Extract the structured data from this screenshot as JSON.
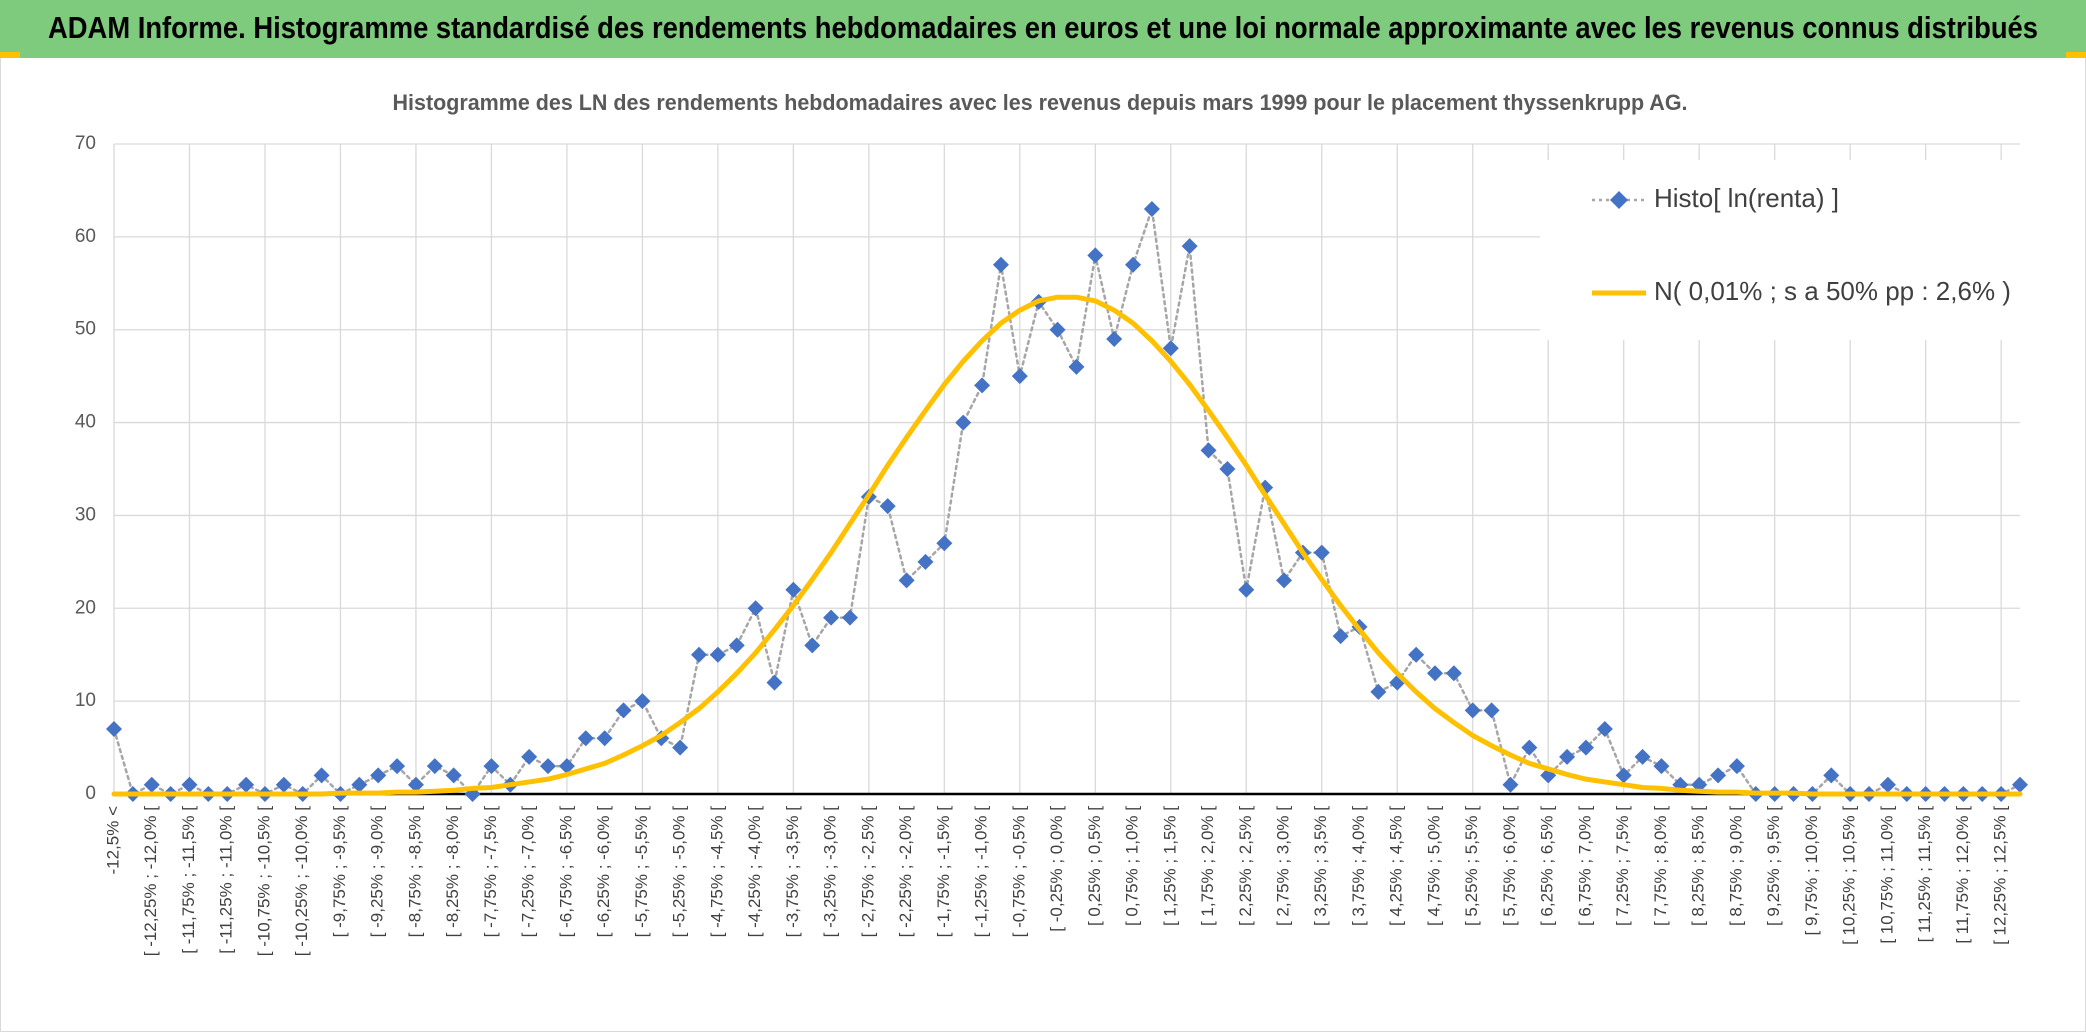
{
  "chart_data": {
    "type": "line",
    "title": "ADAM Informe. Histogramme standardisé des rendements hebdomadaires en euros et une loi normale approximante avec les revenus connus distribués",
    "subtitle": "Histogramme des LN des rendements hebdomadaires avec les revenus depuis mars 1999 pour le placement thyssenkrupp AG.",
    "categories": [
      "-12,5% <",
      null,
      "[ -12,25% ; -12,0% [",
      null,
      "[ -11,75% ; -11,5% [",
      null,
      "[ -11,25% ; -11,0% [",
      null,
      "[ -10,75% ; -10,5% [",
      null,
      "[ -10,25% ; -10,0% [",
      null,
      "[ -9,75% ; -9,5% [",
      null,
      "[ -9,25% ; -9,0% [",
      null,
      "[ -8,75% ; -8,5% [",
      null,
      "[ -8,25% ; -8,0% [",
      null,
      "[ -7,75% ; -7,5% [",
      null,
      "[ -7,25% ; -7,0% [",
      null,
      "[ -6,75% ; -6,5% [",
      null,
      "[ -6,25% ; -6,0% [",
      null,
      "[ -5,75% ; -5,5% [",
      null,
      "[ -5,25% ; -5,0% [",
      null,
      "[ -4,75% ; -4,5% [",
      null,
      "[ -4,25% ; -4,0% [",
      null,
      "[ -3,75% ; -3,5% [",
      null,
      "[ -3,25% ; -3,0% [",
      null,
      "[ -2,75% ; -2,5% [",
      null,
      "[ -2,25% ; -2,0% [",
      null,
      "[ -1,75% ; -1,5% [",
      null,
      "[ -1,25% ; -1,0% [",
      null,
      "[ -0,75% ; -0,5% [",
      null,
      "[ -0,25% ; 0,0% [",
      null,
      "[ 0,25% ; 0,5% [",
      null,
      "[ 0,75% ; 1,0% [",
      null,
      "[ 1,25% ; 1,5% [",
      null,
      "[ 1,75% ; 2,0% [",
      null,
      "[ 2,25% ; 2,5% [",
      null,
      "[ 2,75% ; 3,0% [",
      null,
      "[ 3,25% ; 3,5% [",
      null,
      "[ 3,75% ; 4,0% [",
      null,
      "[ 4,25% ; 4,5% [",
      null,
      "[ 4,75% ; 5,0% [",
      null,
      "[ 5,25% ; 5,5% [",
      null,
      "[ 5,75% ; 6,0% [",
      null,
      "[ 6,25% ; 6,5% [",
      null,
      "[ 6,75% ; 7,0% [",
      null,
      "[ 7,25% ; 7,5% [",
      null,
      "[ 7,75% ; 8,0% [",
      null,
      "[ 8,25% ; 8,5% [",
      null,
      "[ 8,75% ; 9,0% [",
      null,
      "[ 9,25% ; 9,5% [",
      null,
      "[ 9,75% ; 10,0% [",
      null,
      "[ 10,25% ; 10,5% [",
      null,
      "[ 10,75% ; 11,0% [",
      null,
      "[ 11,25% ; 11,5% [",
      null,
      "[ 11,75% ; 12,0% [",
      null,
      "[ 12,25% ; 12,5% [",
      null
    ],
    "series": [
      {
        "name": "Histo[ ln(renta) ]",
        "color": "#4472c4",
        "line_color": "#a6a6a6",
        "marker": "diamond",
        "line_style": "dotted",
        "values": [
          7,
          0,
          1,
          0,
          1,
          0,
          0,
          1,
          0,
          1,
          0,
          2,
          0,
          1,
          2,
          3,
          1,
          3,
          2,
          0,
          3,
          1,
          4,
          3,
          3,
          6,
          6,
          9,
          10,
          6,
          5,
          15,
          15,
          16,
          20,
          12,
          22,
          16,
          19,
          19,
          32,
          31,
          23,
          25,
          27,
          40,
          44,
          57,
          45,
          53,
          50,
          46,
          58,
          49,
          57,
          63,
          48,
          59,
          37,
          35,
          22,
          33,
          23,
          26,
          26,
          17,
          18,
          11,
          12,
          15,
          13,
          13,
          9,
          9,
          1,
          5,
          2,
          4,
          5,
          7,
          2,
          4,
          3,
          1,
          1,
          2,
          3,
          0,
          0,
          0,
          0,
          2,
          0,
          0,
          1,
          0,
          0,
          0,
          0,
          0,
          0,
          1
        ]
      },
      {
        "name": "N( 0,01% ; s a 50% pp : 2,6% )",
        "color": "#ffc000",
        "marker": "none",
        "line_style": "solid",
        "values": [
          0,
          0,
          0,
          0,
          0,
          0,
          0,
          0,
          0,
          0,
          0,
          0,
          0.1,
          0.1,
          0.1,
          0.2,
          0.2,
          0.3,
          0.4,
          0.6,
          0.7,
          1.0,
          1.3,
          1.6,
          2.1,
          2.7,
          3.3,
          4.2,
          5.2,
          6.3,
          7.7,
          9.2,
          11.0,
          13.0,
          15.2,
          17.7,
          20.3,
          23.1,
          26.0,
          29.1,
          32.2,
          35.4,
          38.4,
          41.3,
          44.1,
          46.6,
          48.8,
          50.7,
          52.1,
          53.1,
          53.5,
          53.5,
          53.1,
          52.1,
          50.7,
          48.8,
          46.6,
          44.1,
          41.3,
          38.4,
          35.4,
          32.2,
          29.1,
          26.0,
          23.1,
          20.3,
          17.7,
          15.2,
          13.0,
          11.0,
          9.2,
          7.7,
          6.3,
          5.2,
          4.2,
          3.3,
          2.7,
          2.1,
          1.6,
          1.3,
          1.0,
          0.7,
          0.6,
          0.4,
          0.3,
          0.2,
          0.2,
          0.1,
          0.1,
          0.1,
          0,
          0,
          0,
          0,
          0,
          0,
          0,
          0,
          0,
          0,
          0,
          0
        ]
      }
    ],
    "ylim": [
      0,
      70
    ],
    "yticks": [
      0,
      10,
      20,
      30,
      40,
      50,
      60,
      70
    ],
    "grid": true,
    "legend": "top-right"
  }
}
